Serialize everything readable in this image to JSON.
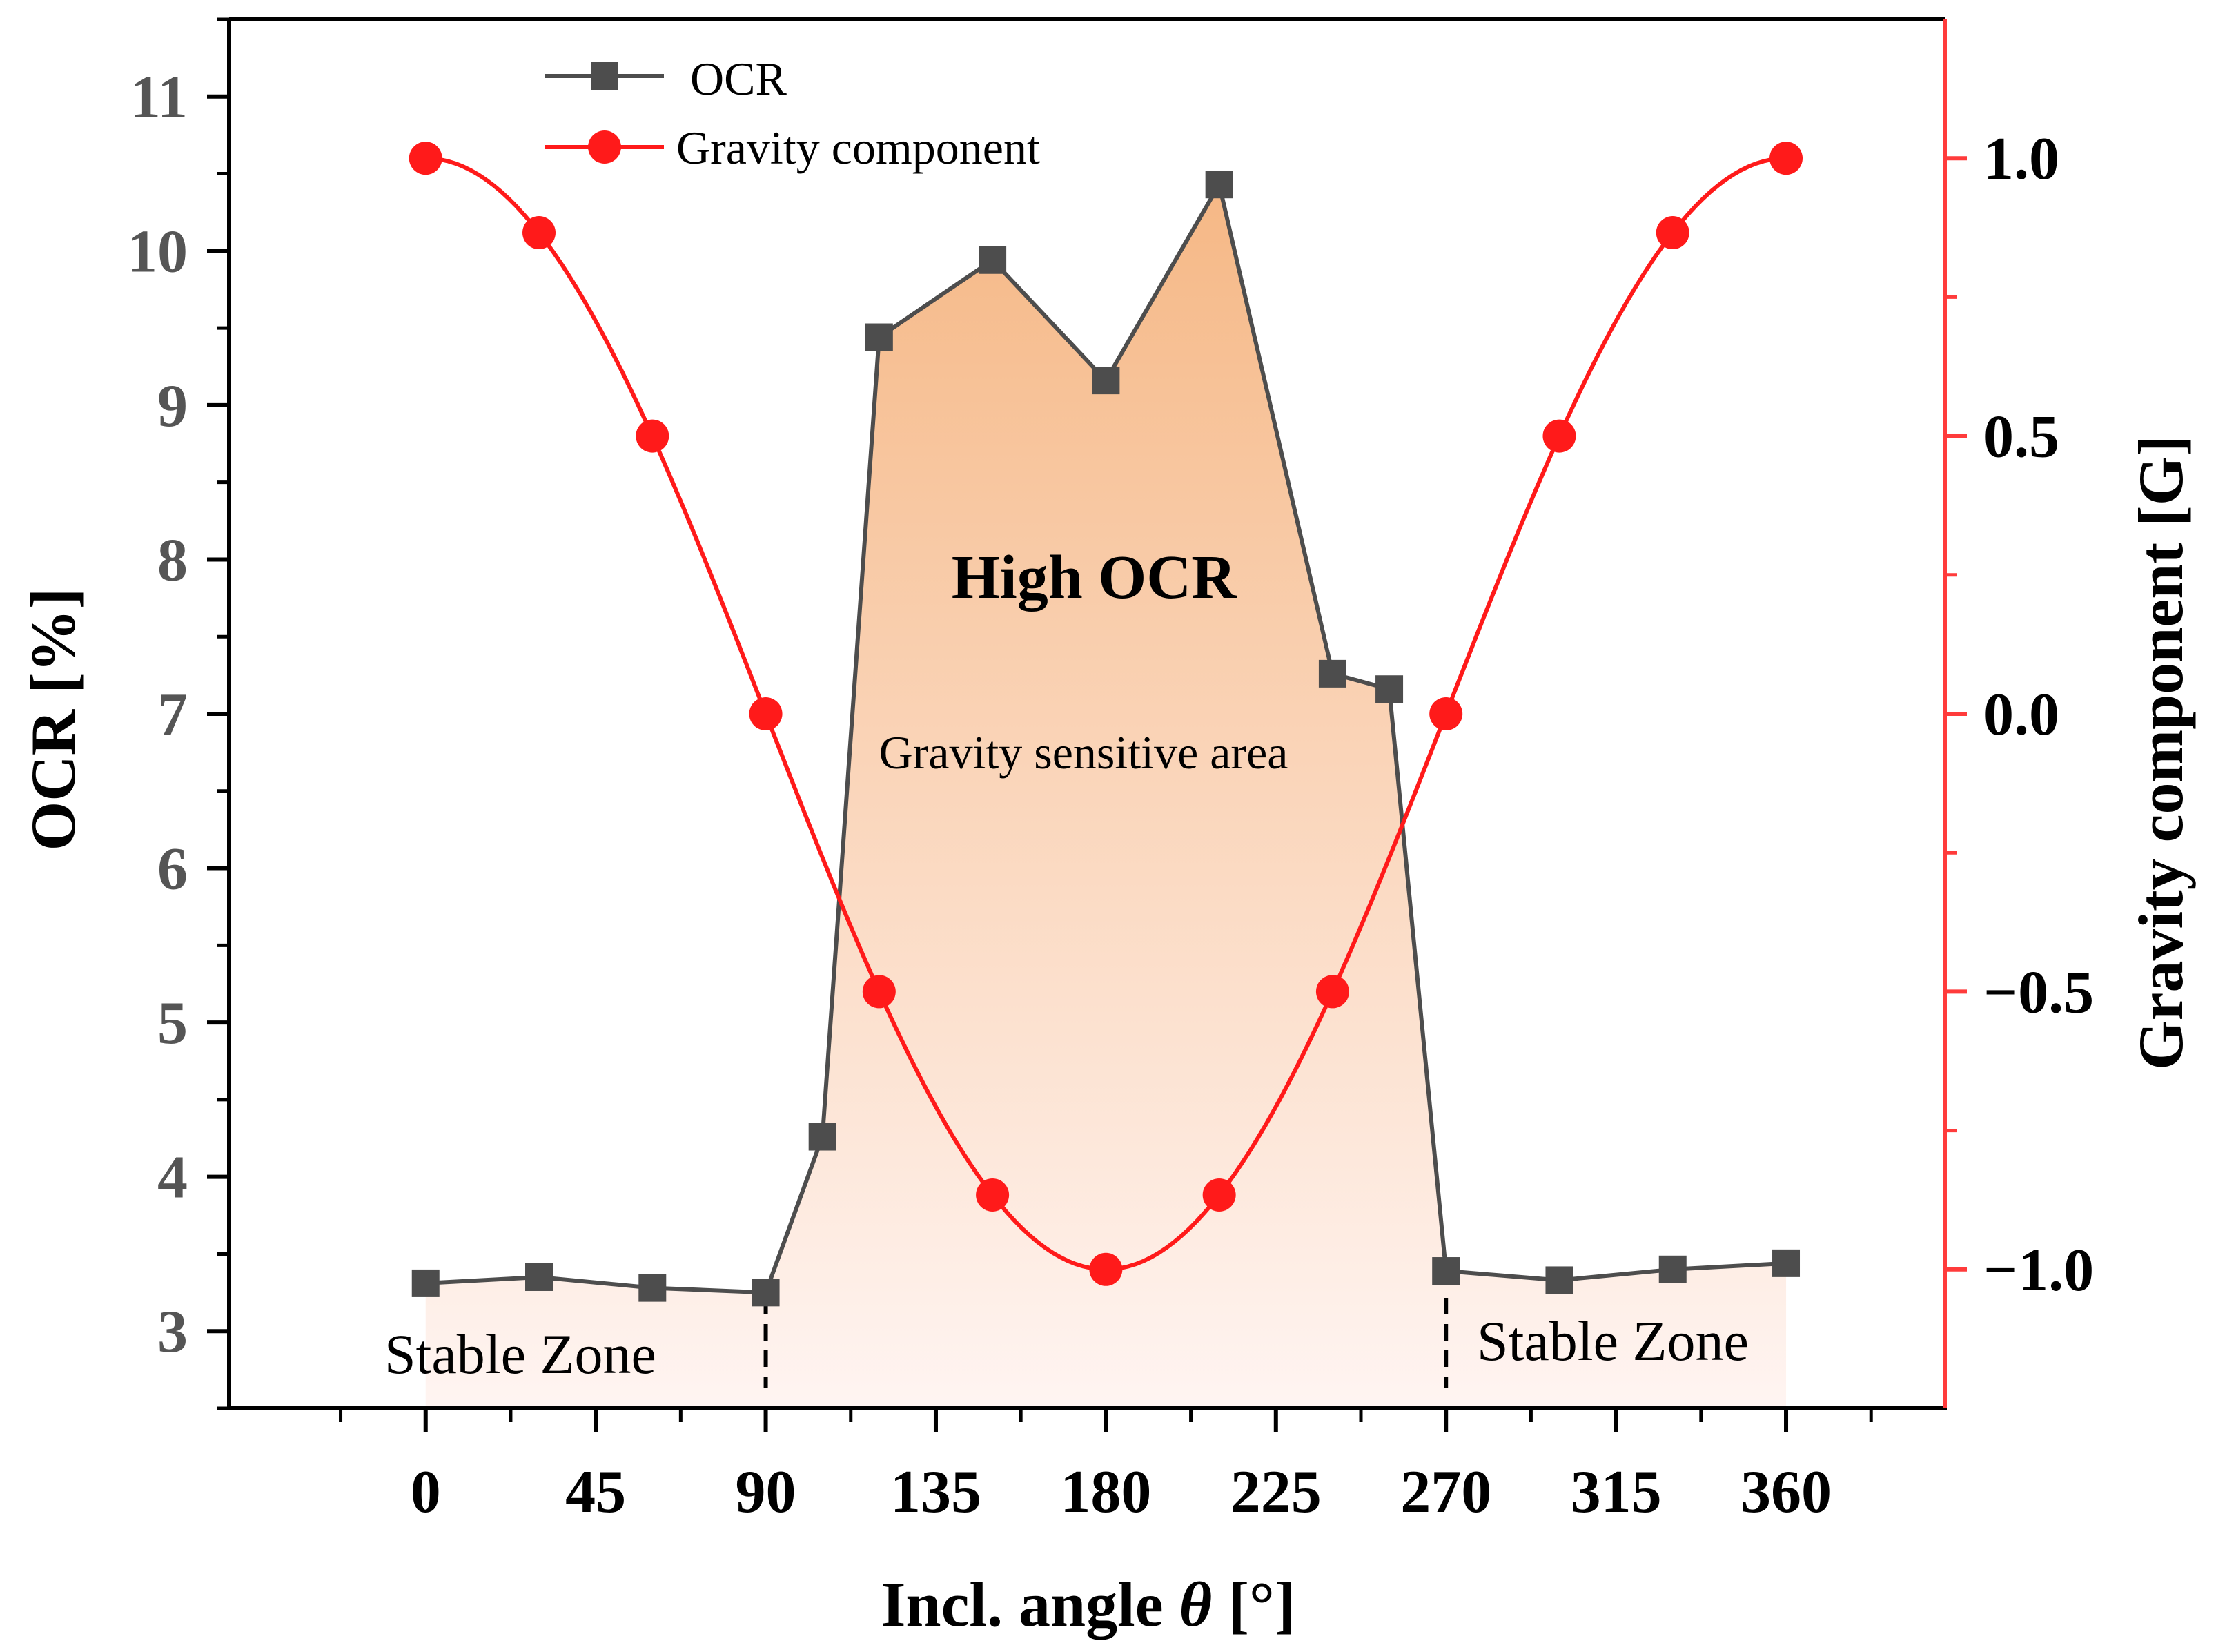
{
  "colors": {
    "ocr": "#4d4d4d",
    "gravity": "#ff1a1a",
    "right_axis": "#ff3b3b",
    "fill_top": "#f5b47f",
    "fill_bottom": "#fff4f1",
    "text": "#000000",
    "axis": "#000000"
  },
  "chart_data": {
    "type": "line",
    "xlabel_prefix": "Incl. angle ",
    "xlabel_symbol": "θ",
    "xlabel_suffix": " [°]",
    "ylabel": "OCR [%]",
    "y2label": "Gravity component [G]",
    "xlim": [
      -52,
      402
    ],
    "ylim": [
      2.5,
      11.5
    ],
    "y2lim": [
      -1.25,
      1.25
    ],
    "x_ticks": [
      0,
      45,
      90,
      135,
      180,
      225,
      270,
      315,
      360
    ],
    "x_tick_labels": [
      "0",
      "45",
      "90",
      "135",
      "180",
      "225",
      "270",
      "315",
      "360"
    ],
    "x_minor_ticks": [
      -22.5,
      22.5,
      67.5,
      112.5,
      157.5,
      202.5,
      247.5,
      292.5,
      337.5,
      382.5
    ],
    "y_ticks": [
      3,
      4,
      5,
      6,
      7,
      8,
      9,
      10,
      11
    ],
    "y_tick_labels": [
      "3",
      "4",
      "5",
      "6",
      "7",
      "8",
      "9",
      "10",
      "11"
    ],
    "y_minor_ticks": [
      2.5,
      3.5,
      4.5,
      5.5,
      6.5,
      7.5,
      8.5,
      9.5,
      10.5,
      11.5
    ],
    "y2_ticks": [
      1.0,
      0.5,
      0.0,
      -0.5,
      -1.0
    ],
    "y2_tick_labels": [
      "1.0",
      "0.5",
      "0.0",
      "−0.5",
      "−1.0"
    ],
    "y2_minor_ticks": [
      0.75,
      0.25,
      -0.25,
      -0.75
    ],
    "series": [
      {
        "name": "OCR",
        "axis": "left",
        "marker": "square",
        "x": [
          0,
          30,
          60,
          90,
          105,
          120,
          150,
          180,
          210,
          240,
          255,
          270,
          300,
          330,
          360
        ],
        "values": [
          3.31,
          3.35,
          3.28,
          3.25,
          4.26,
          9.44,
          9.94,
          9.16,
          10.43,
          7.26,
          7.16,
          3.39,
          3.33,
          3.4,
          3.44
        ]
      },
      {
        "name": "Gravity component",
        "axis": "right",
        "marker": "circle",
        "x": [
          0,
          30,
          60,
          90,
          120,
          150,
          180,
          210,
          240,
          270,
          300,
          330,
          360
        ],
        "values": [
          1.0,
          0.866,
          0.5,
          0.0,
          -0.5,
          -0.866,
          -1.0,
          -0.866,
          -0.5,
          0.0,
          0.5,
          0.866,
          1.0
        ]
      }
    ],
    "legend_position": "top-left",
    "annotations": {
      "high_ocr": "High OCR",
      "sensitive": "Gravity sensitive area",
      "stable_left": "Stable Zone",
      "stable_right": "Stable Zone"
    }
  }
}
